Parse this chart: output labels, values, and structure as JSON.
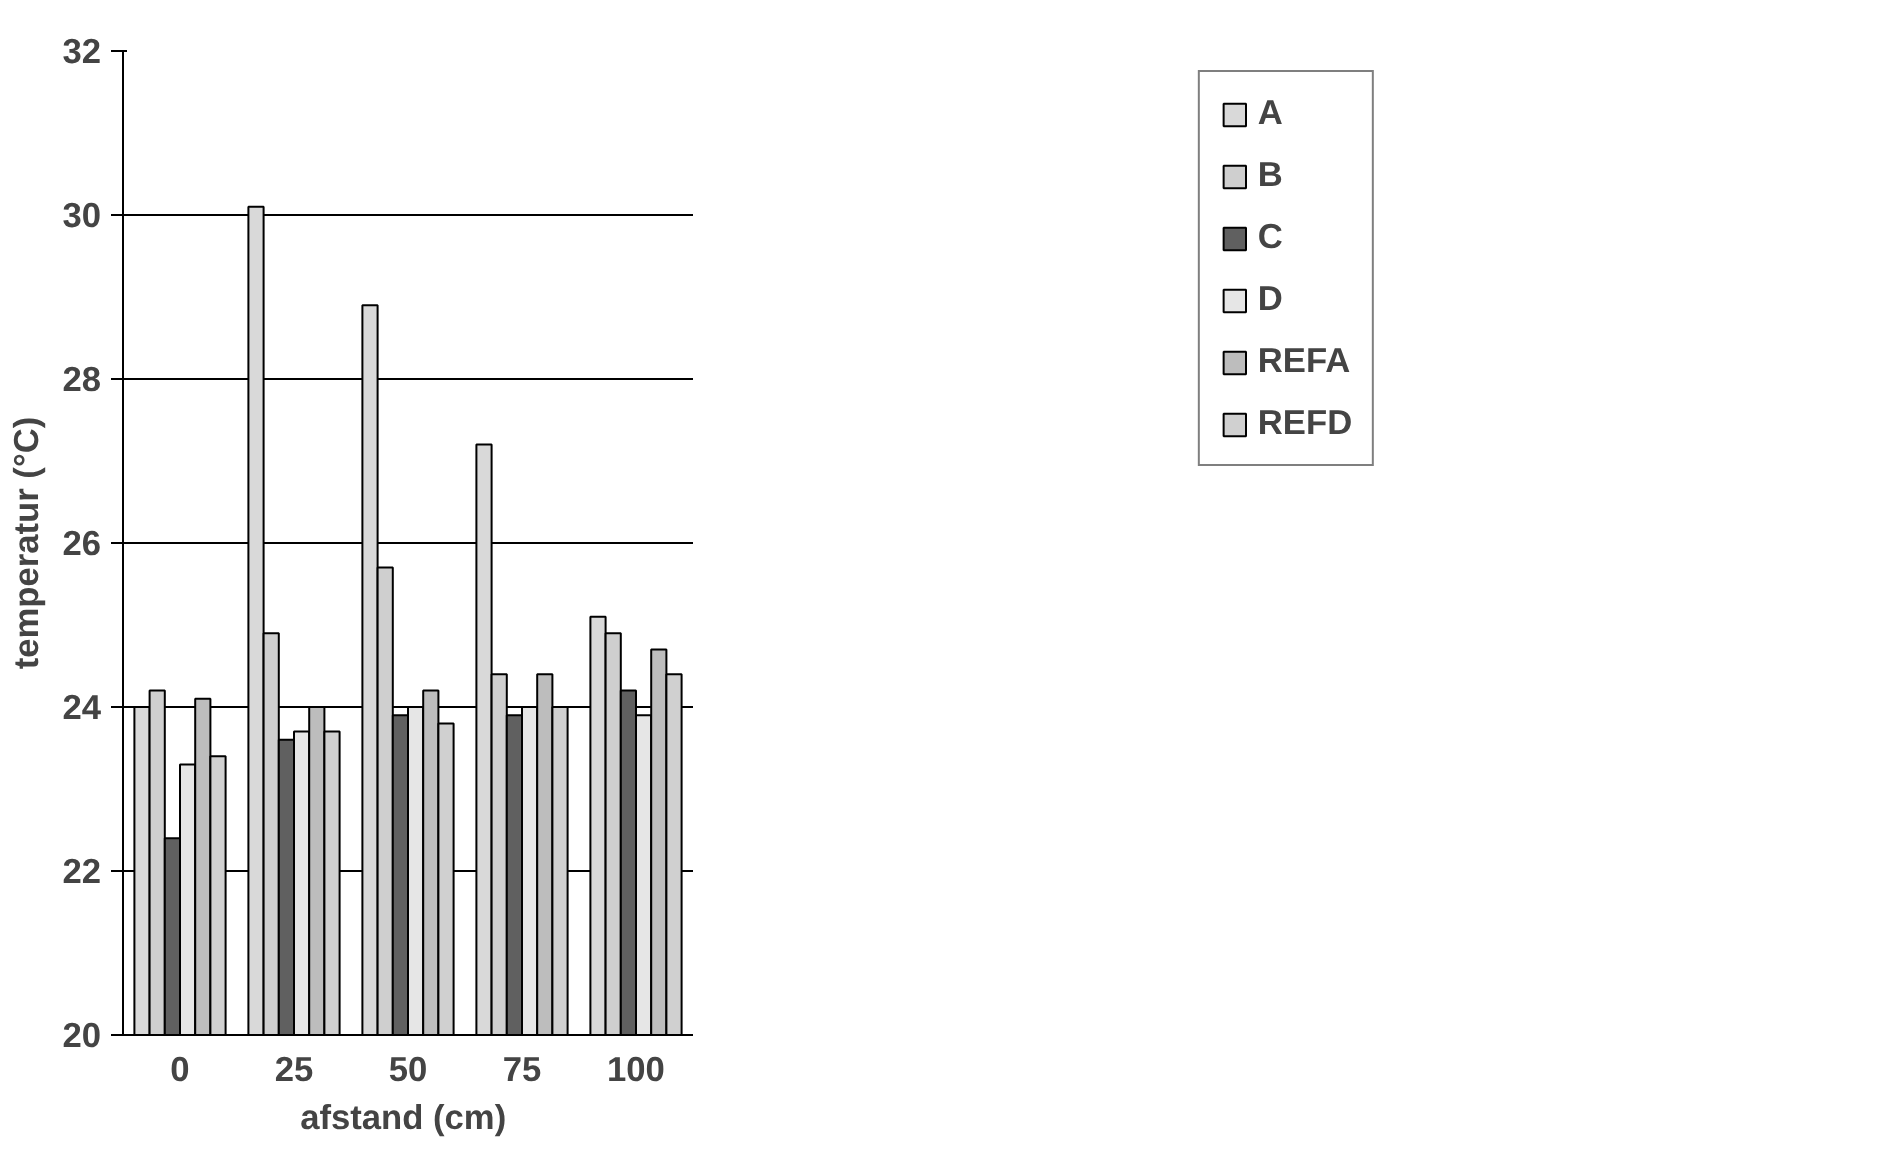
{
  "chart_data": {
    "type": "bar",
    "xlabel": "afstand  (cm)",
    "ylabel": "temperatur (°C)",
    "categories": [
      "0",
      "25",
      "50",
      "75",
      "100"
    ],
    "series": [
      {
        "name": "A",
        "color": "#d9d9d9",
        "values": [
          24.0,
          30.1,
          28.9,
          27.2,
          25.1
        ]
      },
      {
        "name": "B",
        "color": "#cfcfcf",
        "values": [
          24.2,
          24.9,
          25.7,
          24.4,
          24.9
        ]
      },
      {
        "name": "C",
        "color": "#606060",
        "values": [
          22.4,
          23.6,
          23.9,
          23.9,
          24.2
        ]
      },
      {
        "name": "D",
        "color": "#e6e6e6",
        "values": [
          23.3,
          23.7,
          24.0,
          24.0,
          23.9
        ]
      },
      {
        "name": "REFA",
        "color": "#bdbdbd",
        "values": [
          24.1,
          24.0,
          24.2,
          24.4,
          24.7
        ]
      },
      {
        "name": "REFD",
        "color": "#d0d0d0",
        "values": [
          23.4,
          23.7,
          23.8,
          24.0,
          24.4
        ]
      }
    ],
    "ylim": [
      20,
      32
    ],
    "yticks": [
      20,
      22,
      24,
      26,
      28,
      30,
      32
    ],
    "grid": "y",
    "legend": "right"
  }
}
